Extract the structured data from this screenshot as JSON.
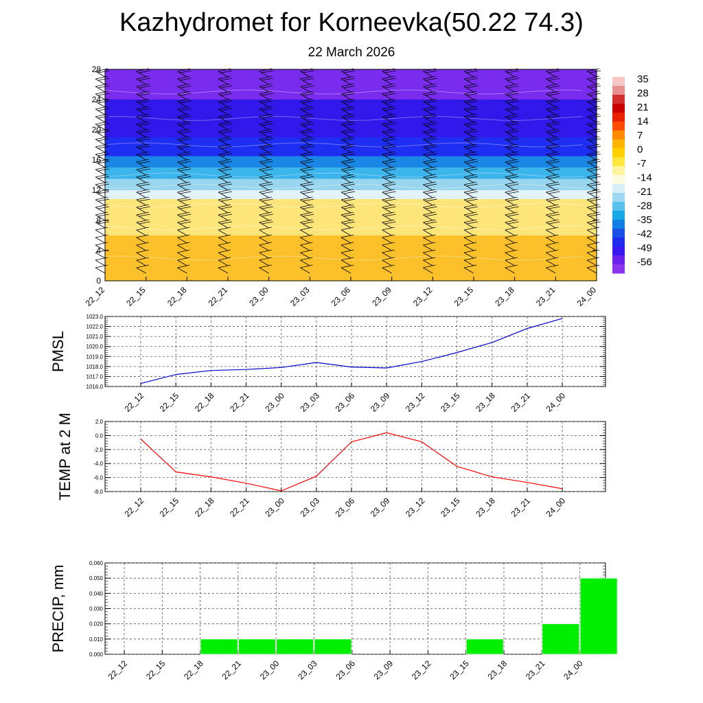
{
  "header": {
    "title": "Kazhydromet for Korneevka(50.22 74.3)",
    "subtitle": "22 March 2026"
  },
  "colors": {
    "pmsl_line": "#0000cc",
    "temp_line": "#ff0000",
    "precip_bar": "#00ee00",
    "grid": "#666666"
  },
  "chart_data": [
    {
      "id": "cross-section",
      "type": "heatmap",
      "x_tick_labels": [
        "22_12",
        "22_15",
        "22_18",
        "22_21",
        "23_00",
        "23_03",
        "23_06",
        "23_09",
        "23_12",
        "23_15",
        "23_18",
        "23_21",
        "24_00"
      ],
      "y_tick_labels": [
        "0",
        "4",
        "8",
        "12",
        "16",
        "20",
        "24",
        "28"
      ],
      "ylim": [
        0,
        28
      ],
      "colorbar_labels": [
        "35",
        "28",
        "21",
        "14",
        "7",
        "0",
        "-7",
        "-14",
        "-21",
        "-28",
        "-35",
        "-42",
        "-49",
        "-56"
      ],
      "colorbar_colors": [
        "#f4c6c6",
        "#e89090",
        "#d23030",
        "#c80000",
        "#e82000",
        "#ff4c00",
        "#ff8a00",
        "#ffb400",
        "#ffd000",
        "#ffe640",
        "#fff39e",
        "#fdfbe0",
        "#d8eef8",
        "#9fd8f2",
        "#58c2ef",
        "#18a8e6",
        "#1080e4",
        "#1a50e8",
        "#1f2cf0",
        "#3a18f0",
        "#6a22ec",
        "#8b35ec"
      ],
      "field_bands": [
        {
          "from": 0,
          "to": 6,
          "color": "#fcc02a"
        },
        {
          "from": 6,
          "to": 10.8,
          "color": "#fee57a"
        },
        {
          "from": 10.8,
          "to": 12,
          "color": "#e3f3fa"
        },
        {
          "from": 12,
          "to": 13.5,
          "color": "#98d6f0"
        },
        {
          "from": 13.5,
          "to": 15,
          "color": "#3cb4ec"
        },
        {
          "from": 15,
          "to": 16.5,
          "color": "#1a86e6"
        },
        {
          "from": 16.5,
          "to": 19,
          "color": "#1e2ef2"
        },
        {
          "from": 19,
          "to": 24,
          "color": "#3318ec"
        },
        {
          "from": 24,
          "to": 28,
          "color": "#7a2cee"
        }
      ]
    },
    {
      "id": "pmsl",
      "type": "line",
      "ylabel": "PMSL",
      "x_tick_labels": [
        "22_12",
        "22_15",
        "22_18",
        "22_21",
        "23_00",
        "23_03",
        "23_06",
        "23_09",
        "23_12",
        "23_15",
        "23_18",
        "23_21",
        "24_00"
      ],
      "y_tick_labels": [
        "1016.0",
        "1017.0",
        "1018.0",
        "1019.0",
        "1020.0",
        "1021.0",
        "1022.0",
        "1023.0"
      ],
      "ylim": [
        1016.0,
        1023.0
      ],
      "values": [
        1016.3,
        1017.2,
        1017.6,
        1017.7,
        1017.9,
        1018.4,
        1017.95,
        1017.85,
        1018.5,
        1019.4,
        1020.4,
        1021.8,
        1022.8
      ]
    },
    {
      "id": "temp",
      "type": "line",
      "ylabel": "TEMP at 2 M",
      "x_tick_labels": [
        "22_12",
        "22_15",
        "22_18",
        "22_21",
        "23_00",
        "23_03",
        "23_06",
        "23_09",
        "23_12",
        "23_15",
        "23_18",
        "23_21",
        "24_00"
      ],
      "y_tick_labels": [
        "2.0",
        "0.0",
        "-2.0",
        "-4.0",
        "-6.0",
        "-8.0"
      ],
      "ylim": [
        -8.0,
        2.0
      ],
      "values": [
        -0.5,
        -5.2,
        -5.9,
        -6.8,
        -7.9,
        -5.8,
        -0.9,
        0.4,
        -0.9,
        -4.4,
        -5.9,
        -6.7,
        -7.6
      ]
    },
    {
      "id": "precip",
      "type": "bar",
      "ylabel": "PRECIP, mm",
      "x_tick_labels": [
        "22_12",
        "22_15",
        "22_18",
        "22_21",
        "23_00",
        "23_03",
        "23_06",
        "23_09",
        "23_12",
        "23_15",
        "23_18",
        "23_21",
        "24_00"
      ],
      "y_tick_labels": [
        "0.000",
        "0.010",
        "0.020",
        "0.030",
        "0.040",
        "0.050",
        "0.060"
      ],
      "ylim": [
        0,
        0.06
      ],
      "values": [
        0,
        0,
        0.01,
        0.01,
        0.01,
        0.01,
        0,
        0,
        0,
        0.01,
        0,
        0.02,
        0.05
      ]
    }
  ]
}
